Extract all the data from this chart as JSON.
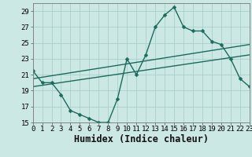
{
  "xlabel": "Humidex (Indice chaleur)",
  "ylabel": "",
  "xlim": [
    0,
    23
  ],
  "ylim": [
    15,
    30
  ],
  "yticks": [
    15,
    17,
    19,
    21,
    23,
    25,
    27,
    29
  ],
  "xticks": [
    0,
    1,
    2,
    3,
    4,
    5,
    6,
    7,
    8,
    9,
    10,
    11,
    12,
    13,
    14,
    15,
    16,
    17,
    18,
    19,
    20,
    21,
    22,
    23
  ],
  "bg_color": "#cce8e4",
  "grid_color": "#aacfcb",
  "line_color": "#1a6b5e",
  "line1_x": [
    0,
    1,
    2,
    3,
    4,
    5,
    6,
    7,
    8,
    9,
    10,
    11,
    12,
    13,
    14,
    15,
    16,
    17,
    18,
    19,
    20,
    21,
    22,
    23
  ],
  "line1_y": [
    21.5,
    20.0,
    20.0,
    18.5,
    16.5,
    16.0,
    15.5,
    15.0,
    15.0,
    18.0,
    23.0,
    21.0,
    23.5,
    27.0,
    28.5,
    29.5,
    27.0,
    26.5,
    26.5,
    25.2,
    24.8,
    23.0,
    20.5,
    19.5
  ],
  "line2_x": [
    0,
    23
  ],
  "line2_y": [
    20.5,
    24.8
  ],
  "line3_x": [
    0,
    23
  ],
  "line3_y": [
    19.5,
    23.5
  ],
  "marker": "D",
  "marker_size": 2.5,
  "line_width": 1.0,
  "tick_fontsize": 6.5,
  "label_fontsize": 8.5
}
